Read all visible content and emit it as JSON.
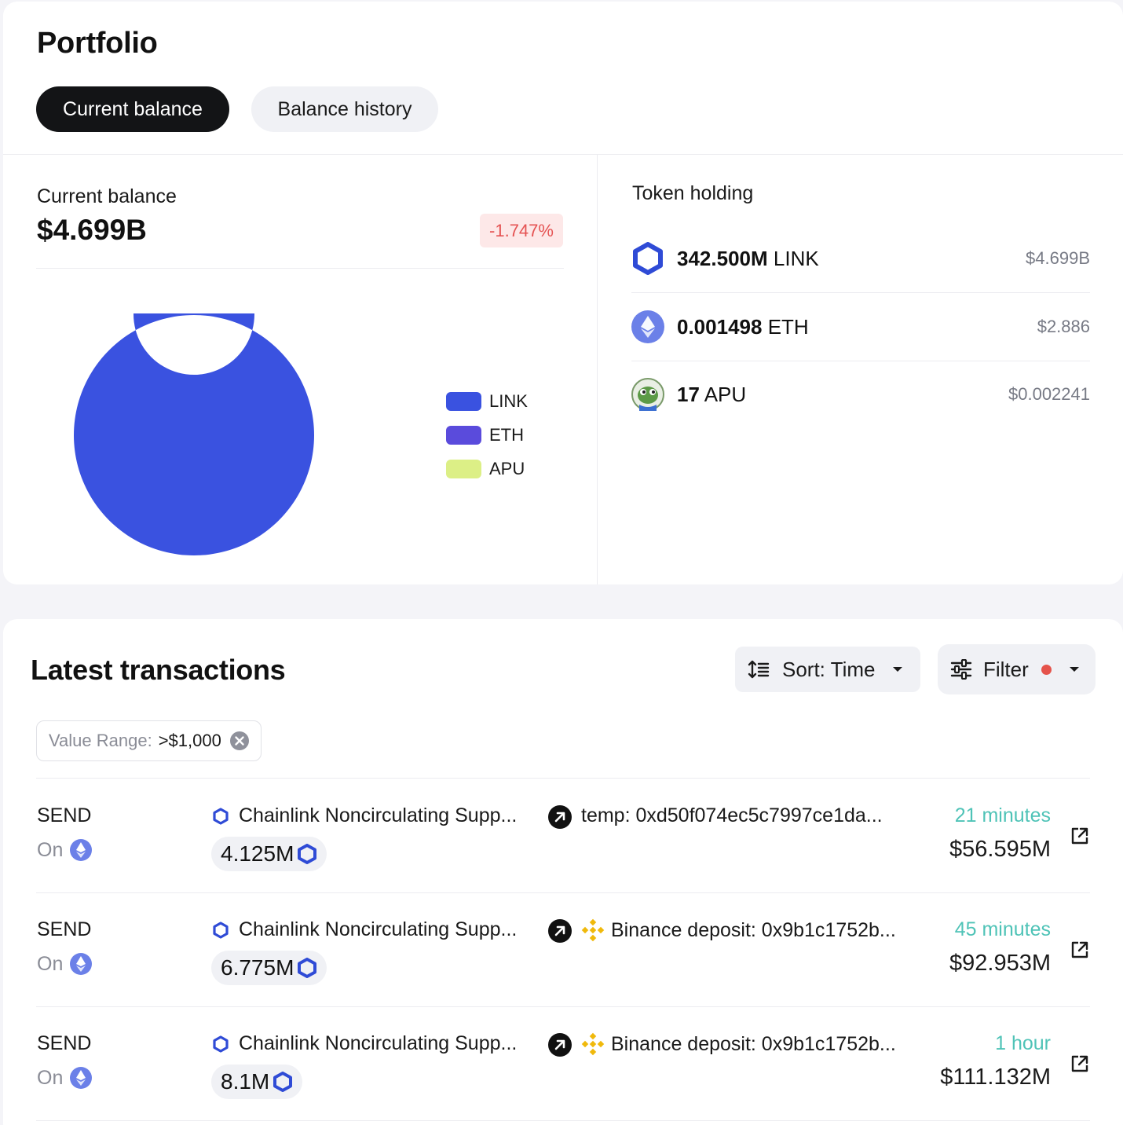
{
  "portfolio": {
    "title": "Portfolio",
    "tabs": [
      {
        "label": "Current balance",
        "active": true
      },
      {
        "label": "Balance history",
        "active": false
      }
    ]
  },
  "balance": {
    "label": "Current balance",
    "value": "$4.699B",
    "change": "-1.747%"
  },
  "chart_data": {
    "type": "pie",
    "categories": [
      "LINK",
      "ETH",
      "APU"
    ],
    "values": [
      4699000000,
      2.886,
      0.002241
    ],
    "colors": [
      "#3a52e0",
      "#5a4bdc",
      "#dcef86"
    ],
    "legend": "right"
  },
  "holdings": {
    "title": "Token holding",
    "items": [
      {
        "amount": "342.500M",
        "symbol": "LINK",
        "usd": "$4.699B",
        "icon": "chainlink-icon"
      },
      {
        "amount": "0.001498",
        "symbol": "ETH",
        "usd": "$2.886",
        "icon": "ethereum-icon"
      },
      {
        "amount": "17",
        "symbol": "APU",
        "usd": "$0.002241",
        "icon": "apu-frog-icon"
      }
    ]
  },
  "transactions": {
    "title": "Latest transactions",
    "sort_label": "Sort: Time",
    "filter_label": "Filter",
    "filter_chip": {
      "label": "Value Range:",
      "value": ">$1,000"
    },
    "rows": [
      {
        "type": "SEND",
        "on": "On",
        "from": "Chainlink Noncirculating Supp...",
        "amount": "4.125M",
        "to": "temp: 0xd50f074ec5c7997ce1da...",
        "to_icon": "",
        "time": "21 minutes",
        "usd": "$56.595M"
      },
      {
        "type": "SEND",
        "on": "On",
        "from": "Chainlink Noncirculating Supp...",
        "amount": "6.775M",
        "to": "Binance deposit: 0x9b1c1752b...",
        "to_icon": "binance-icon",
        "time": "45 minutes",
        "usd": "$92.953M"
      },
      {
        "type": "SEND",
        "on": "On",
        "from": "Chainlink Noncirculating Supp...",
        "amount": "8.1M",
        "to": "Binance deposit: 0x9b1c1752b...",
        "to_icon": "binance-icon",
        "time": "1 hour",
        "usd": "$111.132M"
      }
    ]
  },
  "colors": {
    "accent_blue": "#3a52e0",
    "negative": "#e55353",
    "time_teal": "#4fc3b7",
    "filter_dot": "#e5534b"
  }
}
